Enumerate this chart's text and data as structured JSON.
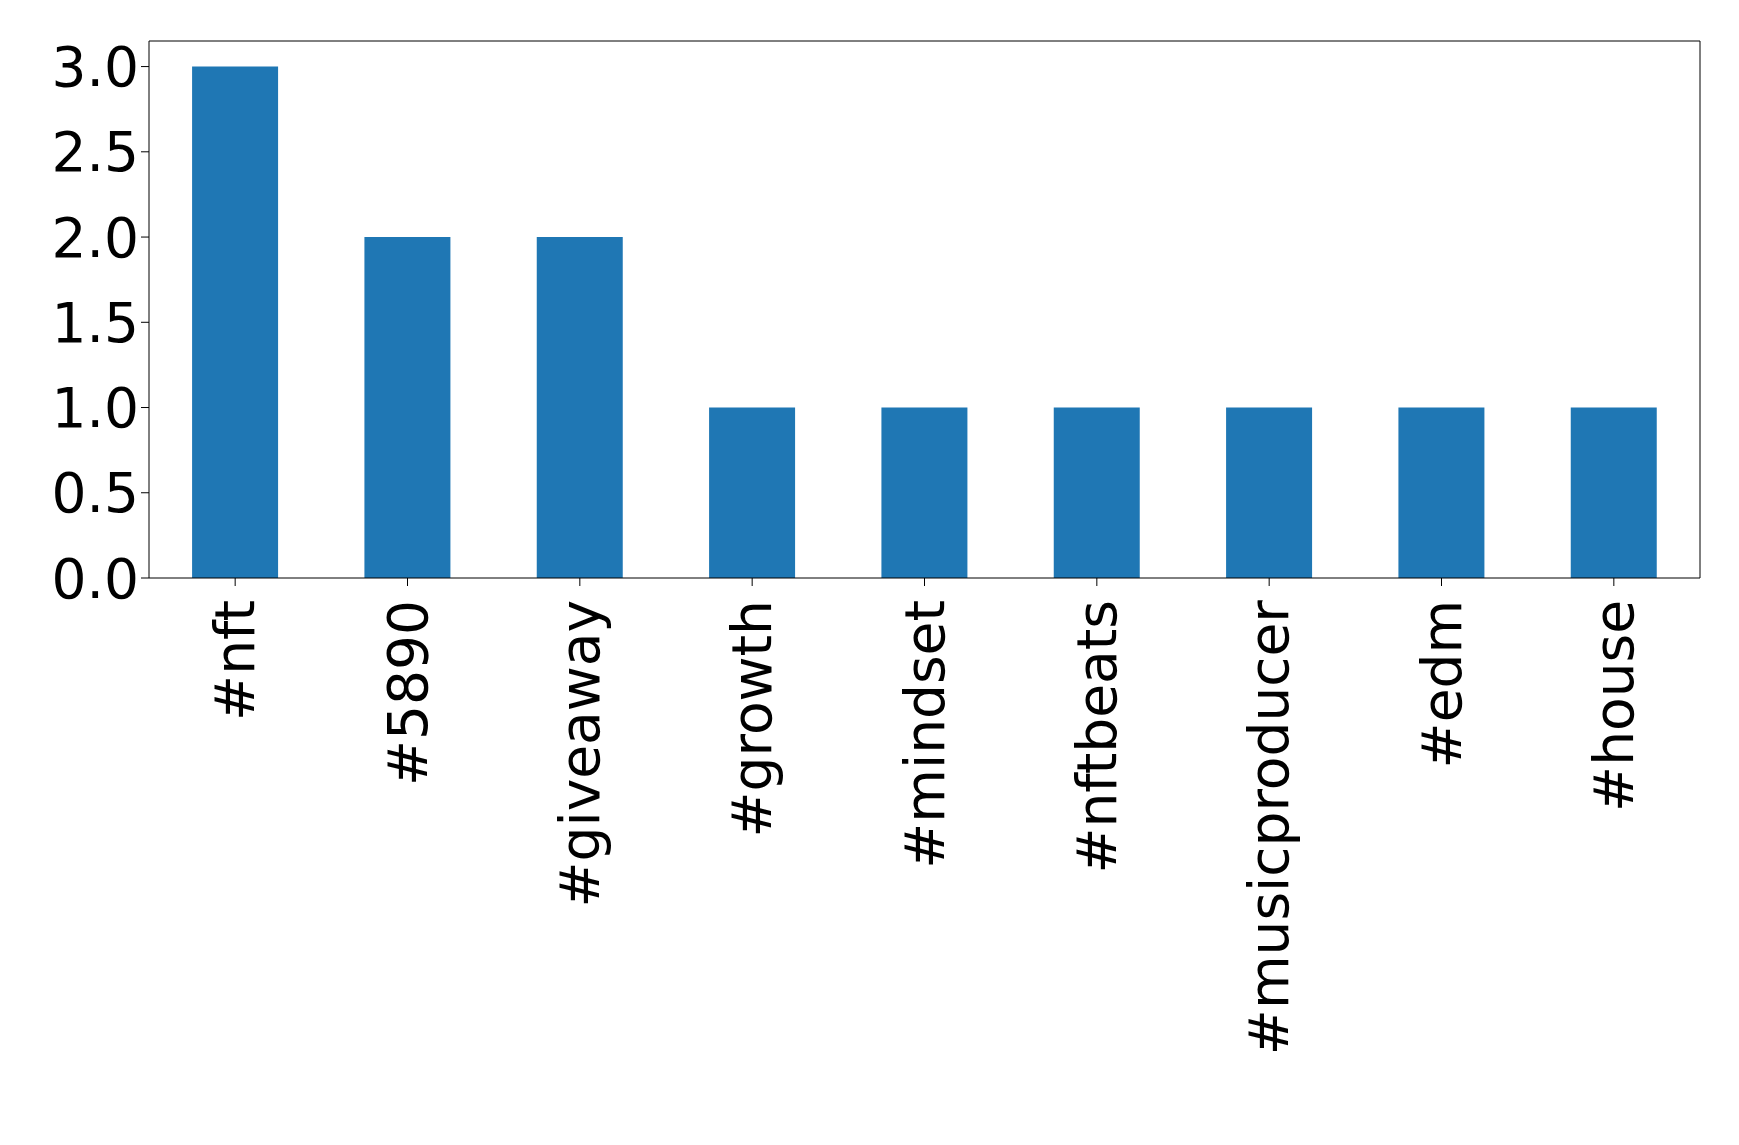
{
  "chart_data": {
    "type": "bar",
    "categories": [
      "#nft",
      "#5890",
      "#giveaway",
      "#growth",
      "#mindset",
      "#nftbeats",
      "#musicproducer",
      "#edm",
      "#house"
    ],
    "values": [
      3,
      2,
      2,
      1,
      1,
      1,
      1,
      1,
      1
    ],
    "color": "#1f77b4",
    "ylim": [
      0,
      3.15
    ],
    "yticks": [
      {
        "value": 0,
        "label": "0.0"
      },
      {
        "value": 0.5,
        "label": "0.5"
      },
      {
        "value": 1,
        "label": "1.0"
      },
      {
        "value": 1.5,
        "label": "1.5"
      },
      {
        "value": 2,
        "label": "2.0"
      },
      {
        "value": 2.5,
        "label": "2.5"
      },
      {
        "value": 3,
        "label": "3.0"
      }
    ],
    "grid": false
  }
}
